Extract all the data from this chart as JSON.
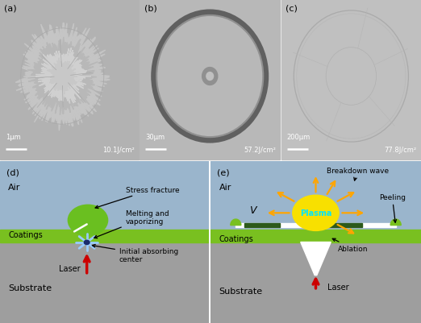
{
  "fig_width": 5.22,
  "fig_height": 4.02,
  "dpi": 100,
  "scale_bars_a": {
    "scale": "1μm",
    "fluence": "10.1J/cm²"
  },
  "scale_bars_b": {
    "scale": "30μm",
    "fluence": "57.2J/cm²"
  },
  "scale_bars_c": {
    "scale": "200μm",
    "fluence": "77.8J/cm²"
  },
  "colors": {
    "air_bg": "#9ab5cc",
    "coating_green": "#79c020",
    "substrate_gray": "#9e9e9e",
    "sem_bg_a": "#b2b2b2",
    "sem_bg_b": "#b8b8b8",
    "sem_bg_c": "#c0c0c0",
    "plasma_yellow": "#f8e000",
    "plasma_text_cyan": "#00e5ff",
    "arrow_orange": "#ffa500",
    "arrow_red": "#cc0000",
    "dark_green": "#2d5a1b",
    "green_blob": "#6abf20",
    "light_blue_spark": "#99ccff",
    "white": "#ffffff",
    "black": "#000000"
  }
}
